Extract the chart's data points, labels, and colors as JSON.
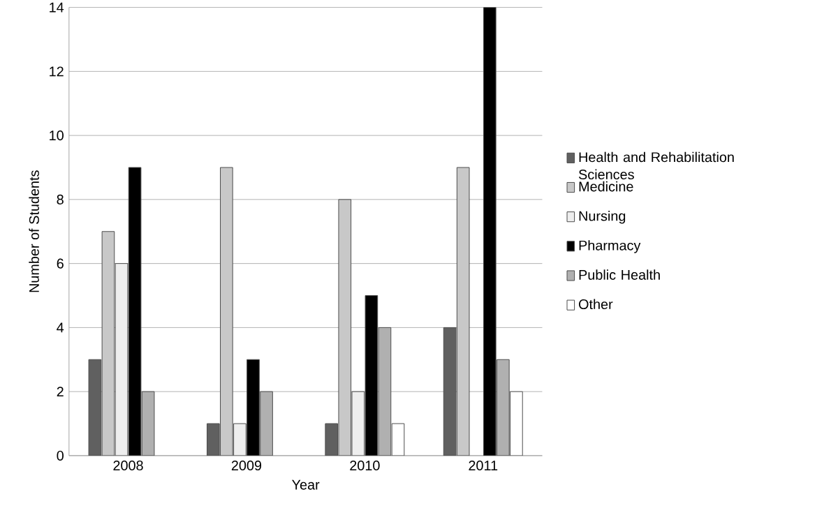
{
  "chart_data": {
    "type": "bar",
    "xlabel": "Year",
    "ylabel": "Number of Students",
    "categories": [
      "2008",
      "2009",
      "2010",
      "2011"
    ],
    "series": [
      {
        "name": "Health and Rehabilitation Sciences",
        "color": "#606060",
        "values": [
          3,
          1,
          1,
          4
        ]
      },
      {
        "name": "Medicine",
        "color": "#c8c8c8",
        "values": [
          7,
          9,
          8,
          9
        ]
      },
      {
        "name": "Nursing",
        "color": "#eeeeee",
        "values": [
          6,
          1,
          2,
          0
        ]
      },
      {
        "name": "Pharmacy",
        "color": "#000000",
        "values": [
          9,
          3,
          5,
          14
        ]
      },
      {
        "name": "Public Health",
        "color": "#b0b0b0",
        "values": [
          2,
          2,
          4,
          3
        ]
      },
      {
        "name": "Other",
        "color": "#ffffff",
        "values": [
          0,
          0,
          1,
          2
        ]
      }
    ],
    "ylim": [
      0,
      14
    ],
    "yticks": [
      0,
      2,
      4,
      6,
      8,
      10,
      12,
      14
    ],
    "grid": "y",
    "legend": "right"
  }
}
